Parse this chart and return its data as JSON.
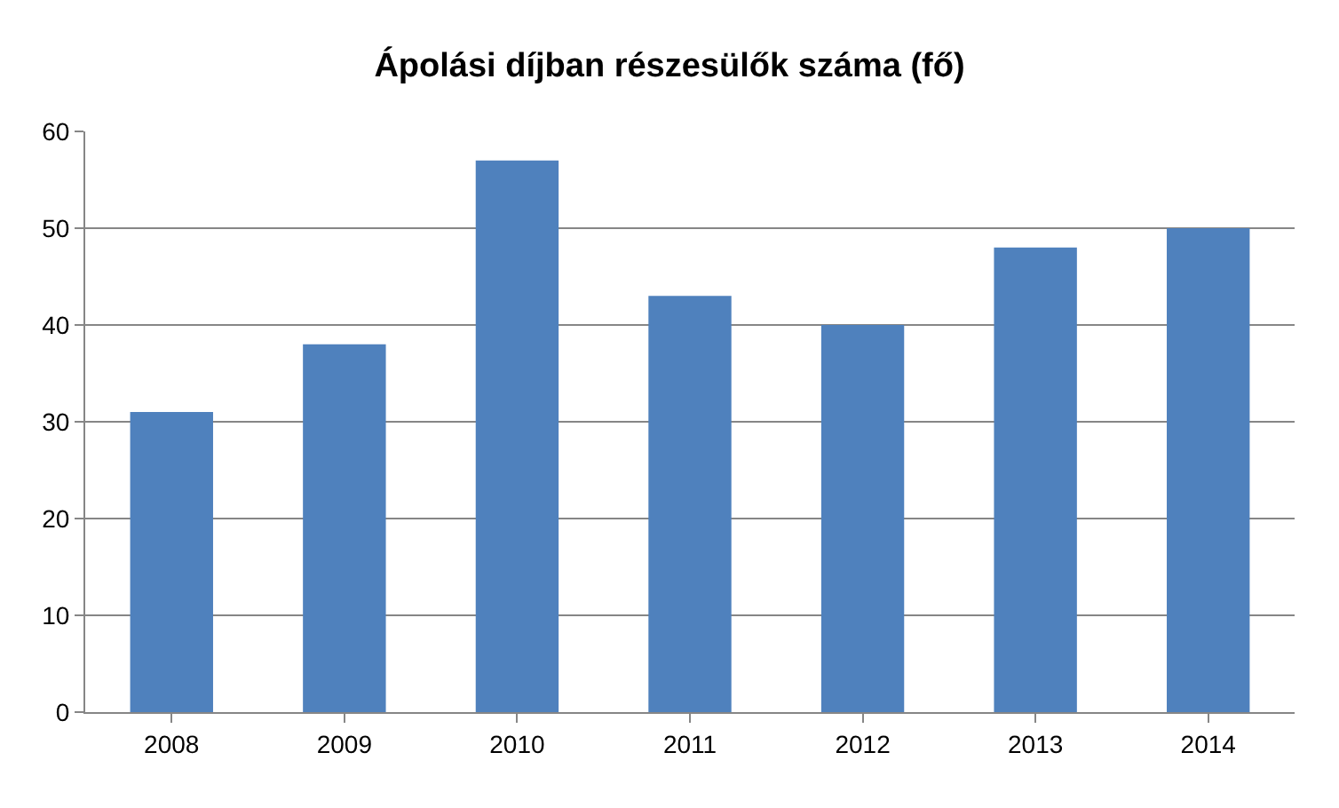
{
  "chart_data": {
    "type": "bar",
    "title": "Ápolási díjban részesülők száma (fő)",
    "categories": [
      "2008",
      "2009",
      "2010",
      "2011",
      "2012",
      "2013",
      "2014"
    ],
    "values": [
      31,
      38,
      57,
      43,
      40,
      48,
      50
    ],
    "color": "#4f81bd",
    "ylim": [
      0,
      60
    ],
    "yticks": [
      0,
      10,
      20,
      30,
      40,
      50,
      60
    ],
    "grid": "y"
  }
}
